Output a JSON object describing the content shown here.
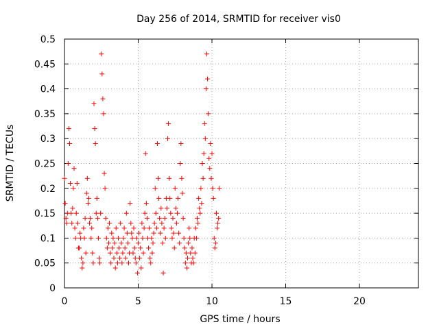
{
  "chart_data": {
    "type": "scatter",
    "title": "Day 256 of 2014, SRMTID for receiver vis0",
    "xlabel": "GPS time / hours",
    "ylabel": "SRMTID / TECUs",
    "xlim": [
      0,
      24
    ],
    "ylim": [
      0,
      0.5
    ],
    "x_ticks": [
      "0",
      "5",
      "10",
      "15",
      "20"
    ],
    "y_ticks": [
      "0",
      "0.05",
      "0.1",
      "0.15",
      "0.2",
      "0.25",
      "0.3",
      "0.35",
      "0.4",
      "0.45",
      "0.5"
    ],
    "grid": true,
    "marker": "+",
    "color": "#ff0000",
    "series": [
      {
        "x": [
          0.0,
          0.05,
          0.1,
          0.15,
          0.2,
          0.25,
          0.3,
          0.35,
          0.4,
          0.45,
          0.5,
          0.55,
          0.6,
          0.65,
          0.7,
          0.75,
          0.8,
          0.85,
          0.9,
          0.95,
          1.0,
          1.05,
          1.1,
          1.15,
          1.2,
          1.25,
          1.3,
          1.35,
          1.4,
          1.45,
          1.5,
          1.55,
          1.6,
          1.65,
          1.7,
          1.75,
          1.8,
          1.85,
          1.9,
          1.95,
          2.0,
          2.05,
          2.1,
          2.15,
          2.2,
          2.25,
          2.3,
          2.35,
          2.4,
          2.45,
          2.5,
          2.55,
          2.6,
          2.65,
          2.7,
          2.75,
          2.8,
          2.85,
          2.9,
          2.95,
          3.0,
          3.05,
          3.1,
          3.15,
          3.2,
          3.25,
          3.3,
          3.35,
          3.4,
          3.45,
          3.5,
          3.55,
          3.6,
          3.65,
          3.7,
          3.75,
          3.8,
          3.85,
          3.9,
          3.95,
          4.0,
          4.05,
          4.1,
          4.15,
          4.2,
          4.25,
          4.3,
          4.35,
          4.4,
          4.45,
          4.5,
          4.55,
          4.6,
          4.65,
          4.7,
          4.75,
          4.8,
          4.85,
          4.9,
          4.95,
          5.0,
          5.05,
          5.1,
          5.15,
          5.2,
          5.25,
          5.3,
          5.35,
          5.4,
          5.45,
          5.5,
          5.55,
          5.6,
          5.65,
          5.7,
          5.75,
          5.8,
          5.85,
          5.9,
          5.95,
          6.0,
          6.05,
          6.1,
          6.15,
          6.2,
          6.25,
          6.3,
          6.35,
          6.4,
          6.45,
          6.5,
          6.55,
          6.6,
          6.65,
          6.7,
          6.75,
          6.8,
          6.85,
          6.9,
          6.95,
          7.0,
          7.05,
          7.1,
          7.15,
          7.2,
          7.25,
          7.3,
          7.35,
          7.4,
          7.45,
          7.5,
          7.55,
          7.6,
          7.65,
          7.7,
          7.75,
          7.8,
          7.85,
          7.9,
          7.95,
          8.0,
          8.05,
          8.1,
          8.15,
          8.2,
          8.25,
          8.3,
          8.35,
          8.4,
          8.45,
          8.5,
          8.55,
          8.6,
          8.65,
          8.7,
          8.75,
          8.8,
          8.85,
          8.9,
          8.95,
          9.0,
          9.05,
          9.1,
          9.15,
          9.2,
          9.25,
          9.3,
          9.35,
          9.4,
          9.45,
          9.5,
          9.55,
          9.6,
          9.65,
          9.7,
          9.75,
          9.8,
          9.85,
          9.9,
          9.95,
          10.0,
          10.05,
          10.1,
          10.15,
          10.2,
          10.25,
          10.3,
          10.35,
          10.4,
          10.45,
          10.5
        ],
        "y": [
          0.22,
          0.17,
          0.14,
          0.13,
          0.15,
          0.25,
          0.32,
          0.29,
          0.21,
          0.15,
          0.13,
          0.16,
          0.2,
          0.24,
          0.12,
          0.1,
          0.15,
          0.21,
          0.13,
          0.08,
          0.08,
          0.11,
          0.1,
          0.06,
          0.04,
          0.05,
          0.12,
          0.1,
          0.14,
          0.07,
          0.19,
          0.22,
          0.17,
          0.18,
          0.13,
          0.14,
          0.1,
          0.12,
          0.07,
          0.05,
          0.37,
          0.32,
          0.29,
          0.15,
          0.18,
          0.14,
          0.1,
          0.06,
          0.05,
          0.15,
          0.47,
          0.43,
          0.38,
          0.35,
          0.23,
          0.2,
          0.14,
          0.1,
          0.08,
          0.12,
          0.09,
          0.13,
          0.07,
          0.05,
          0.11,
          0.08,
          0.1,
          0.06,
          0.09,
          0.04,
          0.12,
          0.07,
          0.05,
          0.1,
          0.08,
          0.06,
          0.13,
          0.09,
          0.05,
          0.07,
          0.1,
          0.12,
          0.08,
          0.06,
          0.15,
          0.11,
          0.09,
          0.05,
          0.07,
          0.17,
          0.13,
          0.11,
          0.1,
          0.07,
          0.12,
          0.08,
          0.06,
          0.05,
          0.1,
          0.03,
          0.09,
          0.11,
          0.06,
          0.08,
          0.04,
          0.13,
          0.1,
          0.07,
          0.12,
          0.15,
          0.27,
          0.17,
          0.14,
          0.1,
          0.08,
          0.12,
          0.06,
          0.05,
          0.1,
          0.07,
          0.09,
          0.11,
          0.13,
          0.2,
          0.15,
          0.12,
          0.29,
          0.22,
          0.18,
          0.14,
          0.11,
          0.16,
          0.13,
          0.09,
          0.03,
          0.12,
          0.14,
          0.1,
          0.18,
          0.16,
          0.3,
          0.33,
          0.22,
          0.18,
          0.15,
          0.12,
          0.1,
          0.14,
          0.11,
          0.08,
          0.2,
          0.16,
          0.13,
          0.15,
          0.18,
          0.11,
          0.09,
          0.25,
          0.29,
          0.22,
          0.19,
          0.14,
          0.1,
          0.08,
          0.05,
          0.07,
          0.04,
          0.06,
          0.09,
          0.12,
          0.1,
          0.07,
          0.05,
          0.08,
          0.06,
          0.05,
          0.1,
          0.07,
          0.12,
          0.1,
          0.14,
          0.13,
          0.18,
          0.16,
          0.15,
          0.2,
          0.17,
          0.25,
          0.22,
          0.27,
          0.33,
          0.3,
          0.4,
          0.47,
          0.42,
          0.35,
          0.26,
          0.24,
          0.29,
          0.22,
          0.27,
          0.2,
          0.18,
          0.1,
          0.08,
          0.09,
          0.15,
          0.12,
          0.13,
          0.14,
          0.2
        ]
      }
    ]
  }
}
